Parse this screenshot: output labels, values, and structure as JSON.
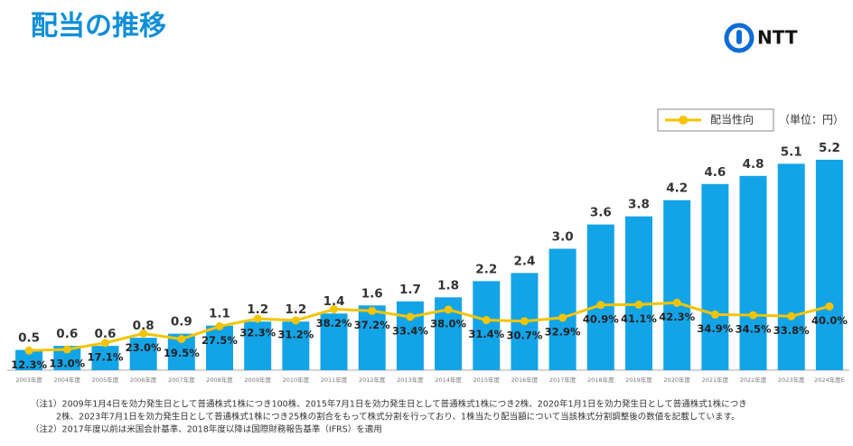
{
  "title": "配当の推移",
  "logo": "NTT",
  "unit": "（単位：円）",
  "notes": [
    "（注1）2009年1月4日を効力発生日として普通株式1株につき100株、2015年7月1日を効力発生日として普通株式1株につき2株、2020年1月1日を効力発生日として普通株式1株につき",
    "2株、2023年7月1日を効力発生日として普通株式1株につき25株の割合をもって株式分割を行っており、1株当たり配当額について当該株式分割調整後の数値を記載しています。",
    "（注2）2017年度以前は米国会計基準、2018年度以降は国際財務報告基準（IFRS）を適用"
  ],
  "chart_data": {
    "type": "bar",
    "categories": [
      "2003年度",
      "2004年度",
      "2005年度",
      "2006年度",
      "2007年度",
      "2008年度",
      "2009年度",
      "2010年度",
      "2011年度",
      "2012年度",
      "2013年度",
      "2014年度",
      "2015年度",
      "2016年度",
      "2017年度",
      "2018年度",
      "2019年度",
      "2020年度",
      "2021年度",
      "2022年度",
      "2023年度",
      "2024年度E"
    ],
    "ylim": [
      0,
      7.25
    ],
    "y2lim": [
      0,
      184
    ],
    "legend": "top-right",
    "series": [
      {
        "type": "bar",
        "color": "#13a4e8",
        "values": [
          0.5,
          0.6,
          0.6,
          0.8,
          0.9,
          1.1,
          1.2,
          1.2,
          1.4,
          1.6,
          1.7,
          1.8,
          2.2,
          2.4,
          3.0,
          3.6,
          3.8,
          4.2,
          4.6,
          4.8,
          5.1,
          5.2
        ],
        "value_labels": [
          "0.5",
          "0.6",
          "0.6",
          "0.8",
          "0.9",
          "1.1",
          "1.2",
          "1.2",
          "1.4",
          "1.6",
          "1.7",
          "1.8",
          "2.2",
          "2.4",
          "3.0",
          "3.6",
          "3.8",
          "4.2",
          "4.6",
          "4.8",
          "5.1",
          "5.2"
        ]
      },
      {
        "type": "line",
        "name": "配当性向",
        "axis": "y2",
        "color": "#f5c400",
        "values": [
          12.3,
          13.0,
          17.1,
          23.0,
          19.5,
          27.5,
          32.3,
          31.2,
          38.2,
          37.2,
          33.4,
          38.0,
          31.4,
          30.7,
          32.9,
          40.9,
          41.1,
          42.3,
          34.9,
          34.5,
          33.8,
          40.0
        ],
        "value_labels": [
          "12.3%",
          "13.0%",
          "17.1%",
          "23.0%",
          "19.5%",
          "27.5%",
          "32.3%",
          "31.2%",
          "38.2%",
          "37.2%",
          "33.4%",
          "38.0%",
          "31.4%",
          "30.7%",
          "32.9%",
          "40.9%",
          "41.1%",
          "42.3%",
          "34.9%",
          "34.5%",
          "33.8%",
          "40.0%"
        ]
      }
    ]
  }
}
